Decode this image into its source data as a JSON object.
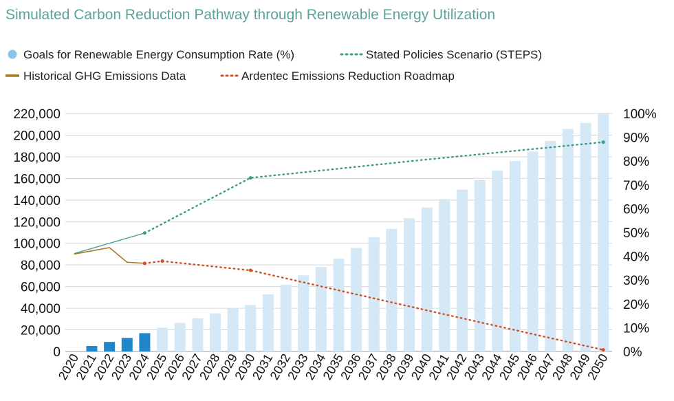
{
  "chart_data": {
    "type": "bar",
    "title": "Simulated Carbon Reduction Pathway through Renewable Energy Utilization",
    "categories": [
      "2020",
      "2021",
      "2022",
      "2023",
      "2024",
      "2025",
      "2026",
      "2027",
      "2028",
      "2029",
      "2030",
      "2031",
      "2032",
      "2033",
      "2034",
      "2035",
      "2036",
      "2037",
      "2038",
      "2039",
      "2040",
      "2041",
      "2042",
      "2043",
      "2044",
      "2045",
      "2046",
      "2047",
      "2048",
      "2049",
      "2050"
    ],
    "y_left": {
      "ylim": [
        0,
        220000
      ],
      "ticks": [
        "0",
        "20,000",
        "40,000",
        "60,000",
        "80,000",
        "100,000",
        "120,000",
        "140,000",
        "160,000",
        "180,000",
        "200,000",
        "220,000"
      ]
    },
    "y_right": {
      "ylim": [
        0,
        100
      ],
      "ticks": [
        "0%",
        "10%",
        "20%",
        "30%",
        "40%",
        "50%",
        "60%",
        "70%",
        "80%",
        "90%",
        "100%"
      ]
    },
    "grid": true,
    "legend": [
      {
        "name": "Goals for Renewable Energy Consumption Rate (%)",
        "symbol": "dot",
        "color": "#8cc4e8"
      },
      {
        "name": "Stated Policies Scenario (STEPS)",
        "symbol": "dotted-line",
        "color": "#3f9a8a"
      },
      {
        "name": "Historical GHG Emissions Data",
        "symbol": "line",
        "color": "#a67c1f"
      },
      {
        "name": "Ardentec Emissions Reduction Roadmap",
        "symbol": "dotted-line",
        "color": "#d0502a"
      }
    ],
    "series": [
      {
        "name": "Goals for Renewable Energy Consumption Rate (%)",
        "kind": "bar",
        "axis": "right",
        "color_actual": "#1f87c9",
        "color_goal": "#d4e8f5",
        "actual_through": "2024",
        "values": [
          0,
          2.3,
          4,
          5.7,
          7.7,
          10,
          12,
          14,
          16,
          18,
          19.5,
          24,
          28,
          32,
          35.5,
          39,
          43.5,
          48,
          51.5,
          56,
          60.5,
          64,
          68,
          72,
          76,
          80,
          84,
          88.5,
          93.5,
          96,
          100
        ]
      },
      {
        "name": "Stated Policies Scenario (STEPS)",
        "kind": "line",
        "axis": "left",
        "color": "#3f9a8a",
        "points": [
          {
            "x": "2020",
            "y": 90500
          },
          {
            "x": "2024",
            "y": 109500
          },
          {
            "x": "2030",
            "y": 160500
          },
          {
            "x": "2040",
            "y": 177500
          },
          {
            "x": "2050",
            "y": 193500
          }
        ]
      },
      {
        "name": "Historical GHG Emissions Data",
        "kind": "line",
        "axis": "left",
        "color": "#a67c1f",
        "points": [
          {
            "x": "2020",
            "y": 90000
          },
          {
            "x": "2022",
            "y": 96000
          },
          {
            "x": "2023",
            "y": 82500
          },
          {
            "x": "2024",
            "y": 81500
          }
        ]
      },
      {
        "name": "Ardentec Emissions Reduction Roadmap",
        "kind": "line",
        "axis": "left",
        "color": "#d0502a",
        "points": [
          {
            "x": "2024",
            "y": 81500
          },
          {
            "x": "2025",
            "y": 83500
          },
          {
            "x": "2030",
            "y": 75000
          },
          {
            "x": "2040",
            "y": 38000
          },
          {
            "x": "2050",
            "y": 1500
          }
        ]
      }
    ]
  }
}
